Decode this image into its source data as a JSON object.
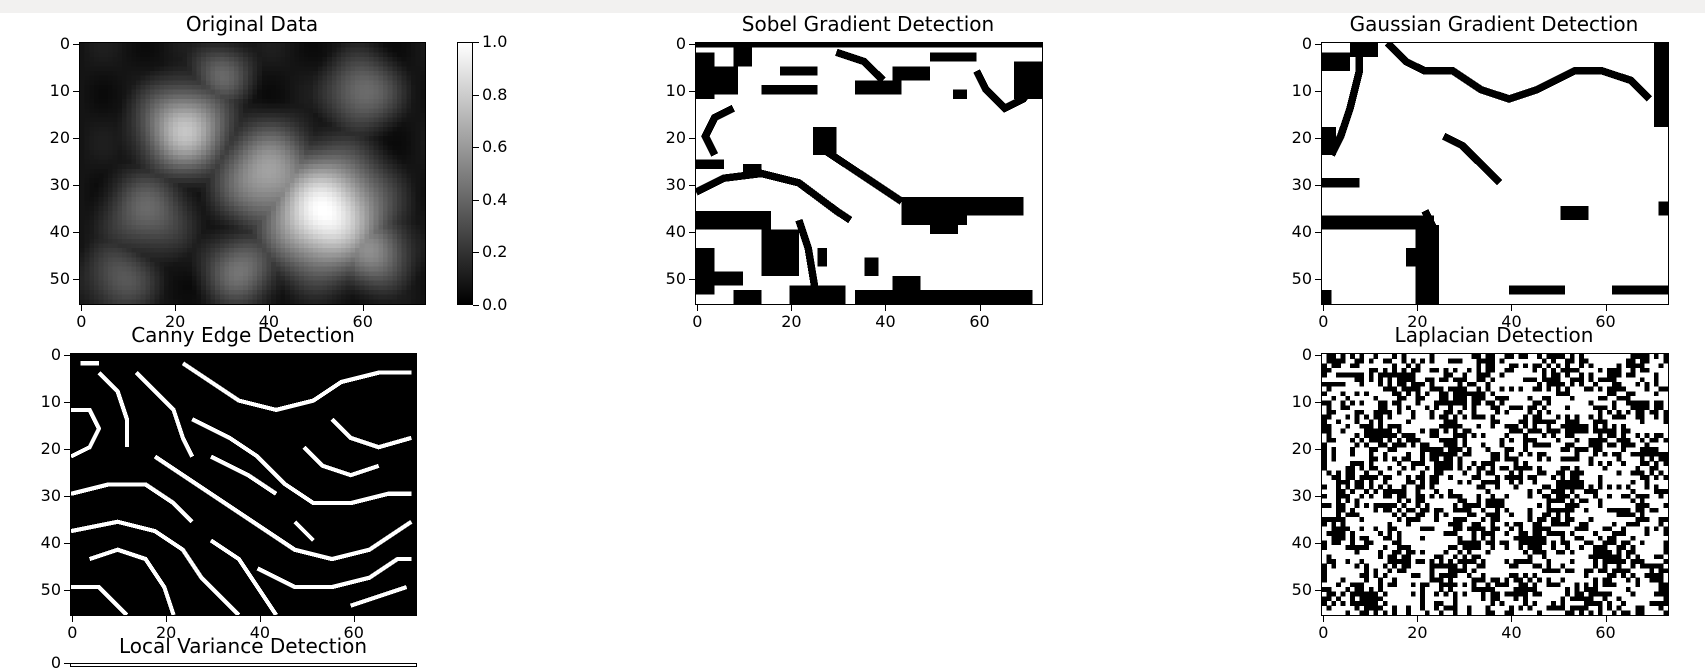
{
  "chart_data": [
    {
      "type": "heatmap",
      "title": "Original Data",
      "colormap": "gray",
      "grid_shape": [
        56,
        74
      ],
      "xticks": [
        0,
        20,
        40,
        60
      ],
      "yticks": [
        0,
        10,
        20,
        30,
        40,
        50
      ],
      "colorbar": {
        "ticks": [
          1.0,
          0.8,
          0.6,
          0.4,
          0.2,
          0.0
        ],
        "range": [
          0.0,
          1.0
        ]
      },
      "blobs": [
        {
          "x": 52,
          "y": 36,
          "value": 1.0,
          "spread": 9
        },
        {
          "x": 22,
          "y": 18,
          "value": 0.75,
          "spread": 7
        },
        {
          "x": 40,
          "y": 28,
          "value": 0.65,
          "spread": 8
        },
        {
          "x": 62,
          "y": 44,
          "value": 0.55,
          "spread": 6
        },
        {
          "x": 8,
          "y": 50,
          "value": 0.35,
          "spread": 6
        },
        {
          "x": 60,
          "y": 10,
          "value": 0.45,
          "spread": 6
        },
        {
          "x": 30,
          "y": 6,
          "value": 0.4,
          "spread": 5
        },
        {
          "x": 14,
          "y": 36,
          "value": 0.4,
          "spread": 7
        },
        {
          "x": 34,
          "y": 48,
          "value": 0.45,
          "spread": 6
        }
      ]
    },
    {
      "type": "heatmap",
      "title": "Sobel Gradient Detection",
      "colormap": "binary",
      "grid_shape": [
        56,
        74
      ],
      "xticks": [
        0,
        20,
        40,
        60
      ],
      "yticks": [
        0,
        10,
        20,
        30,
        40,
        50
      ],
      "black_regions": [
        {
          "x": 0,
          "y": 0,
          "w": 74,
          "h": 1
        },
        {
          "x": 0,
          "y": 2,
          "w": 4,
          "h": 10
        },
        {
          "x": 3,
          "y": 5,
          "w": 6,
          "h": 6
        },
        {
          "x": 8,
          "y": 1,
          "w": 4,
          "h": 4
        },
        {
          "x": 14,
          "y": 9,
          "w": 12,
          "h": 2
        },
        {
          "x": 18,
          "y": 5,
          "w": 8,
          "h": 2
        },
        {
          "x": 34,
          "y": 8,
          "w": 10,
          "h": 3
        },
        {
          "x": 42,
          "y": 5,
          "w": 8,
          "h": 3
        },
        {
          "x": 50,
          "y": 2,
          "w": 10,
          "h": 2
        },
        {
          "x": 68,
          "y": 4,
          "w": 6,
          "h": 8
        },
        {
          "x": 55,
          "y": 10,
          "w": 3,
          "h": 2
        },
        {
          "x": 25,
          "y": 18,
          "w": 5,
          "h": 6
        },
        {
          "x": 44,
          "y": 33,
          "w": 14,
          "h": 6
        },
        {
          "x": 50,
          "y": 38,
          "w": 6,
          "h": 3
        },
        {
          "x": 58,
          "y": 33,
          "w": 12,
          "h": 4
        },
        {
          "x": 0,
          "y": 36,
          "w": 16,
          "h": 4
        },
        {
          "x": 14,
          "y": 40,
          "w": 8,
          "h": 10
        },
        {
          "x": 0,
          "y": 44,
          "w": 4,
          "h": 10
        },
        {
          "x": 4,
          "y": 49,
          "w": 6,
          "h": 3
        },
        {
          "x": 26,
          "y": 44,
          "w": 2,
          "h": 4
        },
        {
          "x": 36,
          "y": 46,
          "w": 3,
          "h": 4
        },
        {
          "x": 42,
          "y": 50,
          "w": 6,
          "h": 3
        },
        {
          "x": 20,
          "y": 52,
          "w": 12,
          "h": 4
        },
        {
          "x": 34,
          "y": 53,
          "w": 38,
          "h": 3
        },
        {
          "x": 8,
          "y": 53,
          "w": 6,
          "h": 3
        },
        {
          "x": 0,
          "y": 25,
          "w": 6,
          "h": 2
        },
        {
          "x": 10,
          "y": 26,
          "w": 4,
          "h": 2
        }
      ],
      "black_strokes": [
        [
          [
            0,
            32
          ],
          [
            6,
            29
          ],
          [
            14,
            28
          ],
          [
            22,
            30
          ],
          [
            26,
            33
          ],
          [
            30,
            36
          ],
          [
            33,
            38
          ]
        ],
        [
          [
            4,
            24
          ],
          [
            2,
            20
          ],
          [
            4,
            16
          ],
          [
            8,
            14
          ]
        ],
        [
          [
            26,
            22
          ],
          [
            32,
            26
          ],
          [
            38,
            30
          ],
          [
            44,
            34
          ]
        ],
        [
          [
            22,
            38
          ],
          [
            24,
            44
          ],
          [
            25,
            50
          ],
          [
            26,
            56
          ]
        ],
        [
          [
            60,
            6
          ],
          [
            62,
            10
          ],
          [
            66,
            14
          ],
          [
            70,
            12
          ],
          [
            73,
            8
          ]
        ],
        [
          [
            30,
            2
          ],
          [
            36,
            4
          ],
          [
            40,
            8
          ]
        ]
      ]
    },
    {
      "type": "heatmap",
      "title": "Gaussian Gradient Detection",
      "colormap": "binary",
      "grid_shape": [
        56,
        74
      ],
      "xticks": [
        0,
        20,
        40,
        60
      ],
      "yticks": [
        0,
        10,
        20,
        30,
        40,
        50
      ],
      "black_regions": [
        {
          "x": 0,
          "y": 2,
          "w": 6,
          "h": 4
        },
        {
          "x": 6,
          "y": 0,
          "w": 6,
          "h": 3
        },
        {
          "x": 0,
          "y": 18,
          "w": 3,
          "h": 6
        },
        {
          "x": 0,
          "y": 29,
          "w": 8,
          "h": 2
        },
        {
          "x": 0,
          "y": 37,
          "w": 24,
          "h": 3
        },
        {
          "x": 20,
          "y": 39,
          "w": 5,
          "h": 17
        },
        {
          "x": 18,
          "y": 44,
          "w": 3,
          "h": 4
        },
        {
          "x": 51,
          "y": 35,
          "w": 6,
          "h": 3
        },
        {
          "x": 62,
          "y": 52,
          "w": 12,
          "h": 2
        },
        {
          "x": 40,
          "y": 52,
          "w": 12,
          "h": 2
        },
        {
          "x": 0,
          "y": 53,
          "w": 2,
          "h": 3
        },
        {
          "x": 71,
          "y": 0,
          "w": 3,
          "h": 18
        },
        {
          "x": 72,
          "y": 34,
          "w": 2,
          "h": 3
        }
      ],
      "black_strokes": [
        [
          [
            8,
            0
          ],
          [
            8,
            6
          ],
          [
            6,
            14
          ],
          [
            4,
            20
          ],
          [
            2,
            24
          ]
        ],
        [
          [
            14,
            0
          ],
          [
            18,
            4
          ],
          [
            22,
            6
          ],
          [
            28,
            6
          ],
          [
            34,
            10
          ],
          [
            40,
            12
          ],
          [
            46,
            10
          ],
          [
            54,
            6
          ],
          [
            60,
            6
          ],
          [
            66,
            8
          ],
          [
            70,
            12
          ]
        ],
        [
          [
            26,
            20
          ],
          [
            30,
            22
          ],
          [
            34,
            26
          ],
          [
            38,
            30
          ]
        ],
        [
          [
            22,
            36
          ],
          [
            24,
            40
          ]
        ]
      ]
    },
    {
      "type": "heatmap",
      "title": "Canny Edge Detection",
      "colormap": "gray",
      "grid_shape": [
        56,
        74
      ],
      "xticks": [
        0,
        20,
        40,
        60
      ],
      "yticks": [
        0,
        10,
        20,
        30,
        40,
        50
      ],
      "white_edges": [
        [
          [
            0,
            12
          ],
          [
            4,
            12
          ],
          [
            6,
            16
          ],
          [
            4,
            20
          ],
          [
            0,
            22
          ]
        ],
        [
          [
            14,
            4
          ],
          [
            18,
            8
          ],
          [
            22,
            12
          ],
          [
            24,
            18
          ],
          [
            26,
            22
          ]
        ],
        [
          [
            24,
            2
          ],
          [
            30,
            6
          ],
          [
            36,
            10
          ],
          [
            44,
            12
          ],
          [
            52,
            10
          ],
          [
            58,
            6
          ],
          [
            66,
            4
          ],
          [
            73,
            4
          ]
        ],
        [
          [
            26,
            14
          ],
          [
            34,
            18
          ],
          [
            40,
            22
          ],
          [
            46,
            28
          ],
          [
            52,
            32
          ],
          [
            60,
            32
          ],
          [
            68,
            30
          ],
          [
            73,
            30
          ]
        ],
        [
          [
            18,
            22
          ],
          [
            24,
            26
          ],
          [
            30,
            30
          ],
          [
            36,
            34
          ],
          [
            42,
            38
          ],
          [
            48,
            42
          ],
          [
            56,
            44
          ],
          [
            64,
            42
          ],
          [
            70,
            38
          ],
          [
            73,
            36
          ]
        ],
        [
          [
            0,
            30
          ],
          [
            8,
            28
          ],
          [
            16,
            28
          ],
          [
            22,
            32
          ],
          [
            26,
            36
          ]
        ],
        [
          [
            0,
            38
          ],
          [
            10,
            36
          ],
          [
            18,
            38
          ],
          [
            24,
            42
          ],
          [
            28,
            48
          ],
          [
            32,
            52
          ],
          [
            36,
            56
          ]
        ],
        [
          [
            4,
            44
          ],
          [
            10,
            42
          ],
          [
            16,
            44
          ],
          [
            20,
            50
          ],
          [
            22,
            56
          ]
        ],
        [
          [
            0,
            50
          ],
          [
            6,
            50
          ],
          [
            10,
            54
          ],
          [
            12,
            56
          ]
        ],
        [
          [
            40,
            46
          ],
          [
            48,
            50
          ],
          [
            56,
            50
          ],
          [
            64,
            48
          ],
          [
            70,
            44
          ],
          [
            73,
            44
          ]
        ],
        [
          [
            30,
            40
          ],
          [
            36,
            44
          ],
          [
            40,
            50
          ],
          [
            44,
            56
          ]
        ],
        [
          [
            56,
            14
          ],
          [
            60,
            18
          ],
          [
            66,
            20
          ],
          [
            73,
            18
          ]
        ],
        [
          [
            50,
            20
          ],
          [
            54,
            24
          ],
          [
            60,
            26
          ],
          [
            66,
            24
          ]
        ],
        [
          [
            6,
            4
          ],
          [
            10,
            8
          ],
          [
            12,
            14
          ],
          [
            12,
            20
          ]
        ],
        [
          [
            30,
            22
          ],
          [
            38,
            26
          ],
          [
            44,
            30
          ]
        ],
        [
          [
            2,
            2
          ],
          [
            6,
            2
          ]
        ],
        [
          [
            60,
            54
          ],
          [
            66,
            52
          ],
          [
            72,
            50
          ]
        ],
        [
          [
            48,
            36
          ],
          [
            52,
            40
          ]
        ]
      ]
    },
    {
      "type": "heatmap",
      "title": "Laplacian Detection",
      "colormap": "binary",
      "grid_shape": [
        56,
        74
      ],
      "xticks": [
        0,
        20,
        40,
        60
      ],
      "yticks": [
        0,
        10,
        20,
        30,
        40,
        50
      ],
      "noise_density": 0.42
    },
    {
      "type": "heatmap",
      "title": "Local Variance Detection",
      "yticks": [
        0
      ]
    }
  ]
}
